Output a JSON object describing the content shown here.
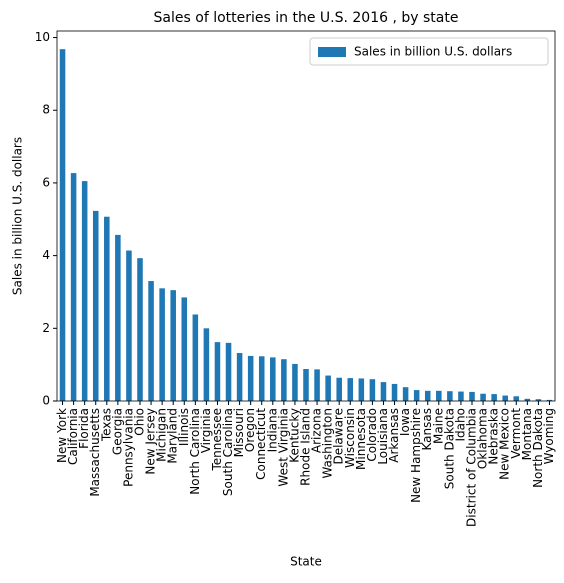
{
  "chart_data": {
    "type": "bar",
    "title": "Sales of lotteries in the U.S. 2016 , by state",
    "xlabel": "State",
    "ylabel": "Sales in billion U.S. dollars",
    "categories": [
      "New York",
      "California",
      "Florida",
      "Massachusetts",
      "Texas",
      "Georgia",
      "Pennsylvania",
      "Ohio",
      "New Jersey",
      "Michigan",
      "Maryland",
      "Illinois",
      "North Carolina",
      "Virginia",
      "Tennessee",
      "South Carolina",
      "Missouri",
      "Oregon",
      "Connecticut",
      "Indiana",
      "West Virginia",
      "Kentucky",
      "Rhode Island",
      "Arizona",
      "Washington",
      "Delaware",
      "Wisconsin",
      "Minnesota",
      "Colorado",
      "Louisiana",
      "Arkansas",
      "Iowa",
      "New Hampshire",
      "Kansas",
      "Maine",
      "South Dakota",
      "Idaho",
      "District of Columbia",
      "Oklahoma",
      "Nebraska",
      "New Mexico",
      "Vermont",
      "Montana",
      "North Dakota",
      "Wyoming"
    ],
    "series": [
      {
        "name": "Sales in billion U.S. dollars",
        "color": "#1f77b4",
        "values": [
          9.68,
          6.27,
          6.05,
          5.23,
          5.07,
          4.57,
          4.14,
          3.93,
          3.3,
          3.1,
          3.05,
          2.85,
          2.38,
          2.0,
          1.62,
          1.6,
          1.32,
          1.24,
          1.23,
          1.2,
          1.15,
          1.02,
          0.88,
          0.87,
          0.7,
          0.64,
          0.63,
          0.62,
          0.6,
          0.52,
          0.47,
          0.38,
          0.3,
          0.28,
          0.28,
          0.27,
          0.26,
          0.25,
          0.2,
          0.19,
          0.15,
          0.13,
          0.06,
          0.05,
          0.03
        ]
      }
    ],
    "ylim": [
      0,
      10.18
    ],
    "yticks": [
      0,
      2,
      4,
      6,
      8,
      10
    ],
    "legend": "upper right"
  }
}
